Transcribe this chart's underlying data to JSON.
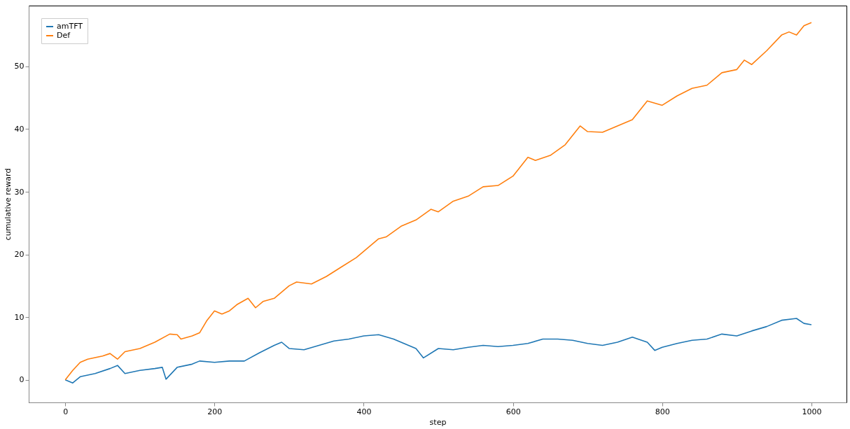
{
  "chart_data": {
    "type": "line",
    "xlabel": "step",
    "ylabel": "cumulative reward",
    "xlim": [
      -49,
      1047
    ],
    "ylim": [
      -3.6,
      59.7
    ],
    "xticks": [
      0,
      200,
      400,
      600,
      800,
      1000
    ],
    "yticks": [
      0,
      10,
      20,
      30,
      40,
      50
    ],
    "grid": false,
    "legend": "top left",
    "marker": "none",
    "line_style": "solid",
    "series": [
      {
        "name": "amTFT",
        "color": "#1f77b4",
        "x": [
          0,
          10,
          20,
          40,
          60,
          70,
          80,
          100,
          120,
          130,
          135,
          150,
          170,
          180,
          200,
          220,
          240,
          260,
          280,
          290,
          300,
          320,
          340,
          360,
          380,
          400,
          420,
          440,
          460,
          470,
          480,
          500,
          520,
          540,
          560,
          580,
          600,
          620,
          640,
          660,
          680,
          700,
          720,
          740,
          760,
          780,
          790,
          800,
          820,
          840,
          860,
          880,
          900,
          920,
          940,
          960,
          980,
          990,
          1000
        ],
        "values": [
          0,
          -0.5,
          0.5,
          1,
          1.8,
          2.3,
          1,
          1.5,
          1.8,
          2,
          0.1,
          2,
          2.5,
          3,
          2.8,
          3,
          3,
          4.3,
          5.5,
          6,
          5,
          4.8,
          5.5,
          6.2,
          6.5,
          7,
          7.2,
          6.5,
          5.5,
          5,
          3.5,
          5,
          4.8,
          5.2,
          5.5,
          5.3,
          5.5,
          5.8,
          6.5,
          6.5,
          6.3,
          5.8,
          5.5,
          6,
          6.8,
          6,
          4.7,
          5.2,
          5.8,
          6.3,
          6.5,
          7.3,
          7,
          7.8,
          8.5,
          9.5,
          9.8,
          9,
          8.8
        ]
      },
      {
        "name": "Def",
        "color": "#ff7f0e",
        "x": [
          0,
          10,
          20,
          30,
          50,
          60,
          70,
          80,
          100,
          120,
          140,
          150,
          155,
          170,
          180,
          190,
          200,
          210,
          220,
          230,
          245,
          255,
          265,
          280,
          300,
          310,
          330,
          350,
          370,
          390,
          400,
          420,
          430,
          450,
          470,
          490,
          500,
          520,
          540,
          560,
          580,
          600,
          620,
          630,
          650,
          670,
          690,
          700,
          720,
          740,
          760,
          780,
          800,
          820,
          840,
          860,
          880,
          900,
          910,
          920,
          940,
          960,
          970,
          980,
          990,
          1000
        ],
        "values": [
          0,
          1.5,
          2.8,
          3.3,
          3.8,
          4.2,
          3.3,
          4.5,
          5,
          6,
          7.3,
          7.2,
          6.5,
          7,
          7.5,
          9.5,
          11,
          10.5,
          11,
          12,
          13,
          11.5,
          12.5,
          13,
          15,
          15.6,
          15.3,
          16.5,
          18,
          19.5,
          20.5,
          22.5,
          22.8,
          24.5,
          25.5,
          27.2,
          26.8,
          28.5,
          29.3,
          30.8,
          31,
          32.5,
          35.5,
          35,
          35.8,
          37.5,
          40.5,
          39.6,
          39.5,
          40.5,
          41.5,
          44.5,
          43.8,
          45.3,
          46.5,
          47,
          49,
          49.5,
          51,
          50.3,
          52.5,
          55,
          55.5,
          55,
          56.5,
          57
        ]
      }
    ]
  }
}
